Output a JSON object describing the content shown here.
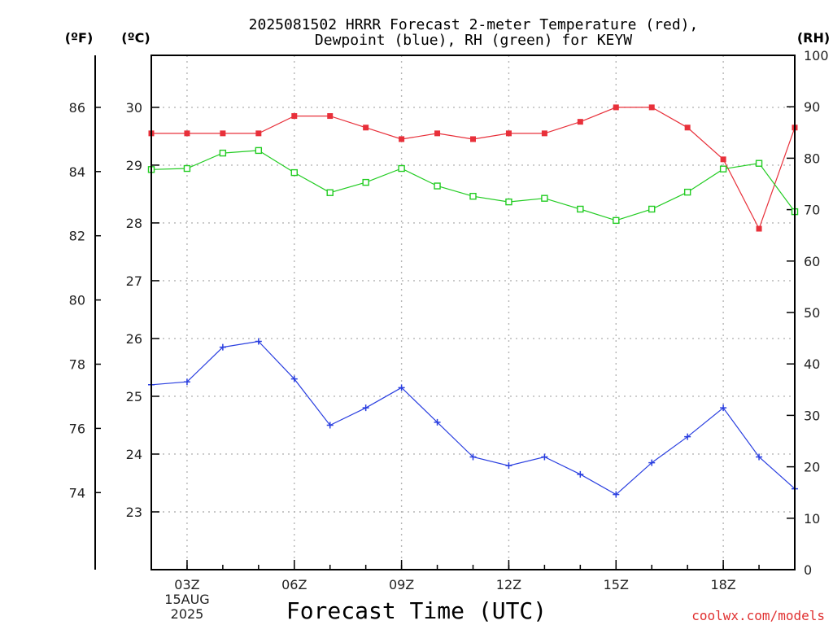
{
  "header": {
    "title_line1": "2025081502 HRRR Forecast 2-meter Temperature (red),",
    "title_line2": "Dewpoint (blue), RH (green) for KEYW"
  },
  "units": {
    "fahrenheit": "(ºF)",
    "celsius": "(ºC)",
    "rh": "(RH)"
  },
  "x_axis": {
    "title": "Forecast Time (UTC)",
    "date_day": "15AUG",
    "date_year": "2025"
  },
  "credit": "coolwx.com/models",
  "colors": {
    "temperature": "#e8303a",
    "dewpoint": "#2a3fe0",
    "rh": "#22cc22",
    "grid": "#b5b5b5"
  },
  "chart_data": {
    "type": "line",
    "x": [
      2,
      3,
      4,
      5,
      6,
      7,
      8,
      9,
      10,
      11,
      12,
      13,
      14,
      15,
      16,
      17,
      18,
      19,
      20
    ],
    "xticks": [
      {
        "hour": 3,
        "label": "03Z"
      },
      {
        "hour": 6,
        "label": "06Z"
      },
      {
        "hour": 9,
        "label": "09Z"
      },
      {
        "hour": 12,
        "label": "12Z"
      },
      {
        "hour": 15,
        "label": "15Z"
      },
      {
        "hour": 18,
        "label": "18Z"
      }
    ],
    "xlim": [
      2,
      20
    ],
    "ylim_celsius": [
      22.0,
      30.9
    ],
    "ylim_rh": [
      0,
      100
    ],
    "celsius_ticks": [
      23,
      24,
      25,
      26,
      27,
      28,
      29,
      30
    ],
    "fahrenheit_ticks": [
      74,
      76,
      78,
      80,
      82,
      84,
      86
    ],
    "rh_ticks": [
      0,
      10,
      20,
      30,
      40,
      50,
      60,
      70,
      80,
      90,
      100
    ],
    "grid": true,
    "series": [
      {
        "name": "Temperature",
        "axis": "celsius",
        "marker": "filled-square",
        "values": [
          29.55,
          29.55,
          29.55,
          29.55,
          29.85,
          29.85,
          29.65,
          29.45,
          29.55,
          29.45,
          29.55,
          29.55,
          29.75,
          30.0,
          30.0,
          29.65,
          29.1,
          27.9,
          29.65
        ]
      },
      {
        "name": "Dewpoint",
        "axis": "celsius",
        "marker": "plus",
        "values": [
          25.2,
          25.25,
          25.85,
          25.95,
          25.3,
          24.5,
          24.8,
          25.15,
          24.55,
          23.95,
          23.8,
          23.95,
          23.65,
          23.3,
          23.85,
          24.3,
          24.8,
          23.95,
          23.4
        ]
      },
      {
        "name": "RH",
        "axis": "rh",
        "marker": "open-square",
        "values": [
          77.8,
          78.0,
          81.0,
          81.5,
          77.2,
          73.3,
          75.3,
          78.0,
          74.6,
          72.6,
          71.5,
          72.2,
          70.1,
          67.9,
          70.1,
          73.4,
          77.9,
          79.0,
          69.6
        ]
      }
    ]
  }
}
